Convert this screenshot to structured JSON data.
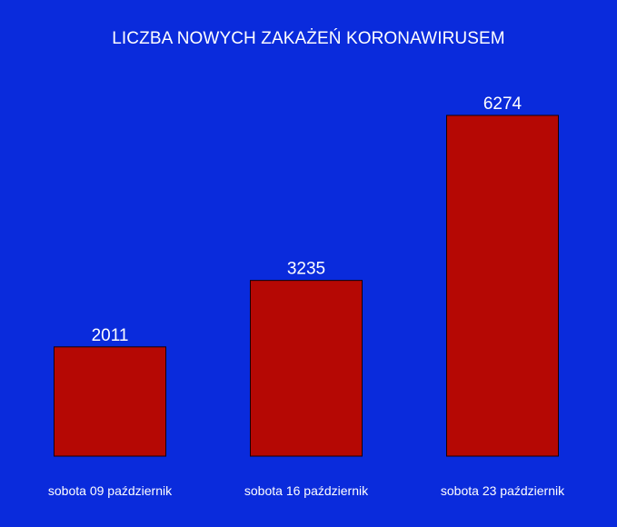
{
  "chart_data": {
    "type": "bar",
    "title": "LICZBA NOWYCH ZAKAŻEŃ KORONAWIRUSEM",
    "categories": [
      "sobota 09 październik",
      "sobota 16 październik",
      "sobota 23 październik"
    ],
    "values": [
      2011,
      3235,
      6274
    ],
    "data_labels": [
      "2011",
      "3235",
      "6274"
    ],
    "xlabel": "",
    "ylabel": "",
    "ylim": [
      0,
      6274
    ],
    "grid": false,
    "legend": "none",
    "colors": {
      "background": "#0a2bdc",
      "bar": "#b50804",
      "bar_outline": "#1a0000",
      "text": "#ffffff"
    }
  }
}
